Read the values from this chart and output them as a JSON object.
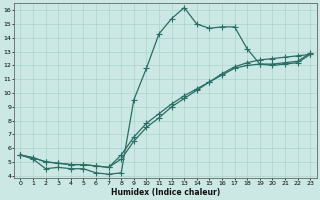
{
  "xlabel": "Humidex (Indice chaleur)",
  "bg_color": "#cce8e4",
  "grid_color": "#b0d8d0",
  "line_color": "#2a6e65",
  "xlim": [
    -0.5,
    23.5
  ],
  "ylim": [
    3.8,
    16.5
  ],
  "xticks": [
    0,
    1,
    2,
    3,
    4,
    5,
    6,
    7,
    8,
    9,
    10,
    11,
    12,
    13,
    14,
    15,
    16,
    17,
    18,
    19,
    20,
    21,
    22,
    23
  ],
  "yticks": [
    4,
    5,
    6,
    7,
    8,
    9,
    10,
    11,
    12,
    13,
    14,
    15,
    16
  ],
  "line1_x": [
    0,
    1,
    2,
    3,
    4,
    5,
    6,
    7,
    8,
    9,
    10,
    11,
    12,
    13,
    14,
    15,
    16,
    17,
    18,
    19,
    20,
    21,
    22,
    23
  ],
  "line1_y": [
    5.5,
    5.2,
    4.5,
    4.6,
    4.5,
    4.5,
    4.2,
    4.1,
    4.2,
    9.5,
    11.8,
    14.3,
    15.4,
    16.2,
    15.0,
    14.7,
    14.8,
    14.8,
    13.2,
    12.1,
    12.0,
    12.1,
    12.2,
    12.8
  ],
  "line2_x": [
    0,
    1,
    2,
    3,
    4,
    5,
    6,
    7,
    8,
    9,
    10,
    11,
    12,
    13,
    14,
    15,
    16,
    17,
    18,
    19,
    20,
    21,
    22,
    23
  ],
  "line2_y": [
    5.5,
    5.3,
    5.0,
    4.9,
    4.8,
    4.8,
    4.7,
    4.6,
    5.5,
    6.8,
    7.8,
    8.5,
    9.2,
    9.8,
    10.3,
    10.8,
    11.3,
    11.8,
    12.0,
    12.1,
    12.1,
    12.2,
    12.3,
    12.9
  ],
  "line3_x": [
    0,
    1,
    2,
    3,
    4,
    5,
    6,
    7,
    8,
    9,
    10,
    11,
    12,
    13,
    14,
    15,
    16,
    17,
    18,
    19,
    20,
    21,
    22,
    23
  ],
  "line3_y": [
    5.5,
    5.3,
    5.0,
    4.9,
    4.8,
    4.8,
    4.7,
    4.6,
    5.2,
    6.5,
    7.5,
    8.2,
    9.0,
    9.6,
    10.2,
    10.8,
    11.4,
    11.9,
    12.2,
    12.4,
    12.5,
    12.6,
    12.7,
    12.8
  ]
}
